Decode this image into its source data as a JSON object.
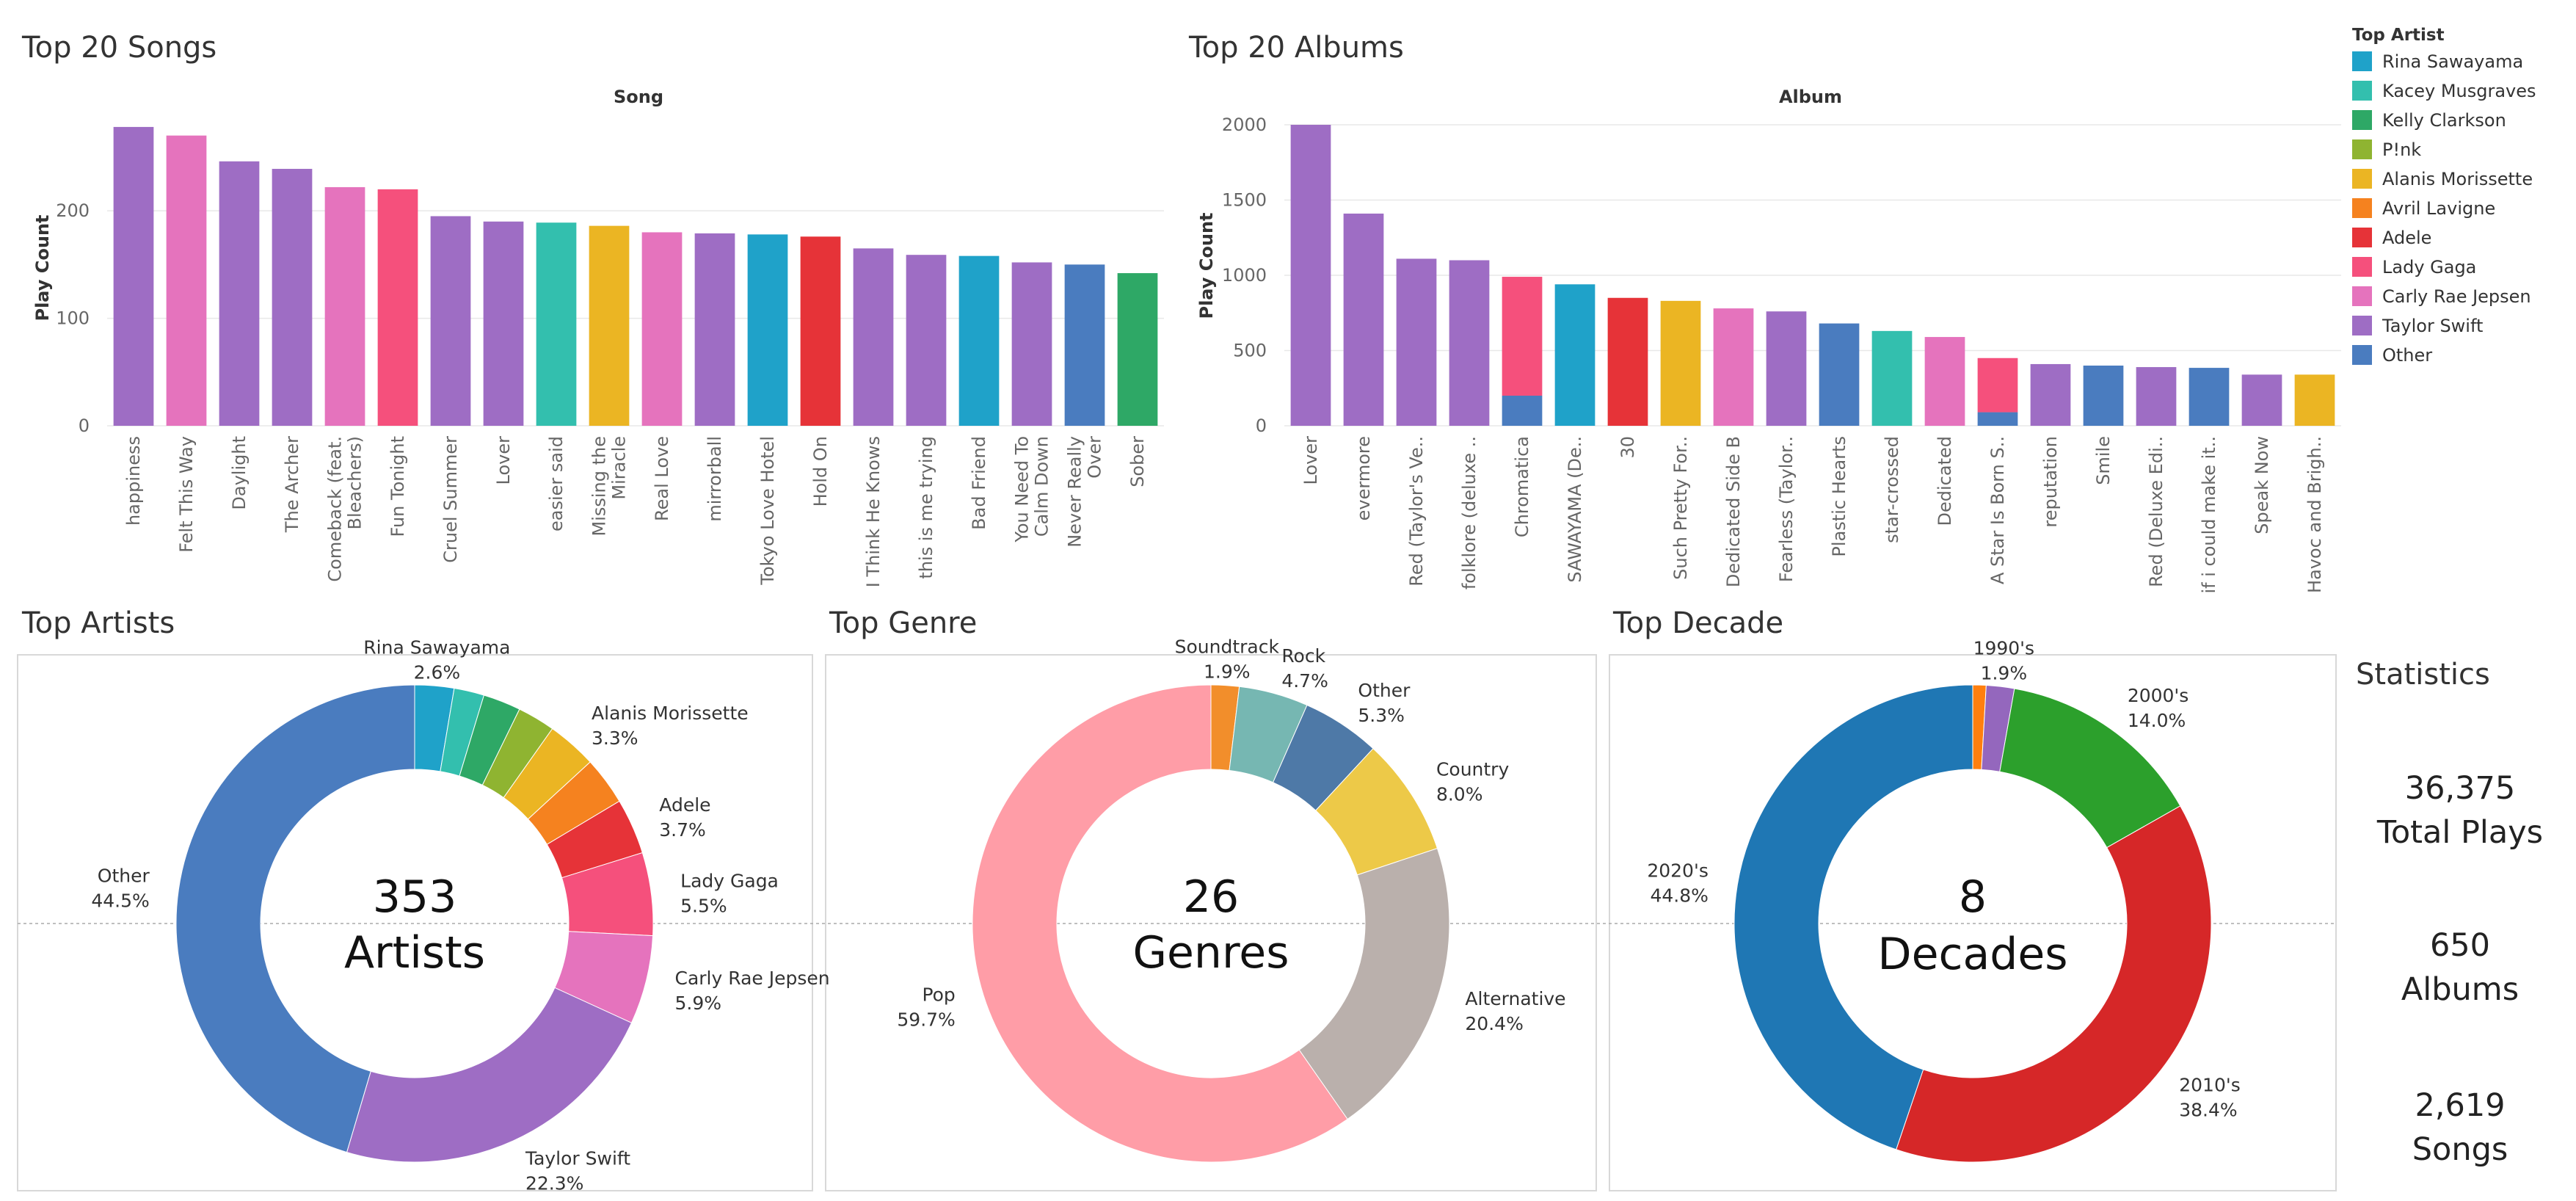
{
  "colors": {
    "Rina Sawayama": "#1fa2c9",
    "Kacey Musgraves": "#33bfae",
    "Kelly Clarkson": "#2ea866",
    "P!nk": "#8fb431",
    "Alanis Morissette": "#ebb523",
    "Avril Lavigne": "#f5821f",
    "Adele": "#e63338",
    "Lady Gaga": "#f5507c",
    "Carly Rae Jepsen": "#e573bd",
    "Taylor Swift": "#9e6dc4",
    "Other": "#4a7cbf"
  },
  "chart_data": [
    {
      "type": "bar",
      "title": "Top 20 Songs",
      "xlabel": "Song",
      "ylabel": "Play Count",
      "ylim": [
        0,
        280
      ],
      "yticks": [
        0,
        100,
        200
      ],
      "categories": [
        "happiness",
        "Felt This Way",
        "Daylight",
        "The Archer",
        "Comeback (feat. Bleachers)",
        "Fun Tonight",
        "Cruel Summer",
        "Lover",
        "easier said",
        "Missing the Miracle",
        "Real Love",
        "mirrorball",
        "Tokyo Love Hotel",
        "Hold On",
        "I Think He Knows",
        "this is me trying",
        "Bad Friend",
        "You Need To Calm Down",
        "Never Really Over",
        "Sober"
      ],
      "tick_labels": [
        [
          "happiness"
        ],
        [
          "Felt This Way"
        ],
        [
          "Daylight"
        ],
        [
          "The Archer"
        ],
        [
          "Comeback (feat.",
          "Bleachers)"
        ],
        [
          "Fun Tonight"
        ],
        [
          "Cruel Summer"
        ],
        [
          "Lover"
        ],
        [
          "easier said"
        ],
        [
          "Missing the",
          "Miracle"
        ],
        [
          "Real Love"
        ],
        [
          "mirrorball"
        ],
        [
          "Tokyo Love Hotel"
        ],
        [
          "Hold On"
        ],
        [
          "I Think He Knows"
        ],
        [
          "this is me trying"
        ],
        [
          "Bad Friend"
        ],
        [
          "You Need To",
          "Calm Down"
        ],
        [
          "Never Really",
          "Over"
        ],
        [
          "Sober"
        ]
      ],
      "values": [
        278,
        270,
        246,
        239,
        222,
        220,
        195,
        190,
        189,
        186,
        180,
        179,
        178,
        176,
        165,
        159,
        158,
        152,
        150,
        142
      ],
      "artists": [
        "Taylor Swift",
        "Carly Rae Jepsen",
        "Taylor Swift",
        "Taylor Swift",
        "Carly Rae Jepsen",
        "Lady Gaga",
        "Taylor Swift",
        "Taylor Swift",
        "Kacey Musgraves",
        "Alanis Morissette",
        "Carly Rae Jepsen",
        "Taylor Swift",
        "Rina Sawayama",
        "Adele",
        "Taylor Swift",
        "Taylor Swift",
        "Rina Sawayama",
        "Taylor Swift",
        "Other",
        "Kelly Clarkson"
      ]
    },
    {
      "type": "bar",
      "title": "Top 20 Albums",
      "xlabel": "Album",
      "ylabel": "Play Count",
      "ylim": [
        0,
        2000
      ],
      "yticks": [
        0,
        500,
        1000,
        1500,
        2000
      ],
      "categories": [
        "Lover",
        "evermore",
        "Red (Taylor's Ve..",
        "folklore (deluxe ..",
        "Chromatica",
        "SAWAYAMA (De..",
        "30",
        "Such Pretty For..",
        "Dedicated Side B",
        "Fearless (Taylor..",
        "Plastic Hearts",
        "star-crossed",
        "Dedicated",
        "A Star Is Born S..",
        "reputation",
        "Smile",
        "Red (Deluxe Edi..",
        "if i could make it..",
        "Speak Now",
        "Havoc and Brigh.."
      ],
      "values": [
        2000,
        1410,
        1110,
        1100,
        990,
        940,
        850,
        830,
        780,
        760,
        680,
        630,
        590,
        450,
        410,
        400,
        390,
        385,
        340,
        340
      ],
      "stacks": [
        [
          {
            "artist": "Taylor Swift",
            "value": 2000
          }
        ],
        [
          {
            "artist": "Taylor Swift",
            "value": 1410
          }
        ],
        [
          {
            "artist": "Taylor Swift",
            "value": 1110
          }
        ],
        [
          {
            "artist": "Taylor Swift",
            "value": 1100
          }
        ],
        [
          {
            "artist": "Other",
            "value": 200
          },
          {
            "artist": "Lady Gaga",
            "value": 790
          }
        ],
        [
          {
            "artist": "Rina Sawayama",
            "value": 940
          }
        ],
        [
          {
            "artist": "Adele",
            "value": 850
          }
        ],
        [
          {
            "artist": "Alanis Morissette",
            "value": 830
          }
        ],
        [
          {
            "artist": "Carly Rae Jepsen",
            "value": 780
          }
        ],
        [
          {
            "artist": "Taylor Swift",
            "value": 760
          }
        ],
        [
          {
            "artist": "Other",
            "value": 680
          }
        ],
        [
          {
            "artist": "Kacey Musgraves",
            "value": 630
          }
        ],
        [
          {
            "artist": "Carly Rae Jepsen",
            "value": 590
          }
        ],
        [
          {
            "artist": "Other",
            "value": 90
          },
          {
            "artist": "Lady Gaga",
            "value": 360
          }
        ],
        [
          {
            "artist": "Taylor Swift",
            "value": 410
          }
        ],
        [
          {
            "artist": "Other",
            "value": 400
          }
        ],
        [
          {
            "artist": "Taylor Swift",
            "value": 390
          }
        ],
        [
          {
            "artist": "Other",
            "value": 385
          }
        ],
        [
          {
            "artist": "Taylor Swift",
            "value": 340
          }
        ],
        [
          {
            "artist": "Alanis Morissette",
            "value": 340
          }
        ]
      ]
    },
    {
      "type": "pie",
      "title": "Top Artists",
      "center_number": "353",
      "center_label": "Artists",
      "slices": [
        {
          "name": "Rina Sawayama",
          "value": 2.6,
          "color": "#1fa2c9",
          "label": "Rina Sawayama",
          "pct": "2.6%"
        },
        {
          "name": "Kacey Musgraves",
          "value": 2.0,
          "color": "#33bfae",
          "label": "",
          "pct": ""
        },
        {
          "name": "Kelly Clarkson",
          "value": 2.5,
          "color": "#2ea866",
          "label": "",
          "pct": ""
        },
        {
          "name": "P!nk",
          "value": 2.5,
          "color": "#8fb431",
          "label": "",
          "pct": ""
        },
        {
          "name": "Alanis Morissette",
          "value": 3.3,
          "color": "#ebb523",
          "label": "Alanis Morissette",
          "pct": "3.3%"
        },
        {
          "name": "Avril Lavigne",
          "value": 3.2,
          "color": "#f5821f",
          "label": "",
          "pct": ""
        },
        {
          "name": "Adele",
          "value": 3.7,
          "color": "#e63338",
          "label": "Adele",
          "pct": "3.7%"
        },
        {
          "name": "Lady Gaga",
          "value": 5.5,
          "color": "#f5507c",
          "label": "Lady Gaga",
          "pct": "5.5%"
        },
        {
          "name": "Carly Rae Jepsen",
          "value": 5.9,
          "color": "#e573bd",
          "label": "Carly Rae Jepsen",
          "pct": "5.9%"
        },
        {
          "name": "Taylor Swift",
          "value": 22.3,
          "color": "#9e6dc4",
          "label": "Taylor Swift",
          "pct": "22.3%"
        },
        {
          "name": "Other",
          "value": 44.5,
          "color": "#4a7cbf",
          "label": "Other",
          "pct": "44.5%"
        }
      ]
    },
    {
      "type": "pie",
      "title": "Top Genre",
      "center_number": "26",
      "center_label": "Genres",
      "slices": [
        {
          "name": "Soundtrack",
          "value": 1.9,
          "color": "#f28e2b",
          "label": "Soundtrack",
          "pct": "1.9%"
        },
        {
          "name": "Rock",
          "value": 4.7,
          "color": "#76b7b2",
          "label": "Rock",
          "pct": "4.7%"
        },
        {
          "name": "Other",
          "value": 5.3,
          "color": "#4e79a7",
          "label": "Other",
          "pct": "5.3%"
        },
        {
          "name": "Country",
          "value": 8.0,
          "color": "#edc948",
          "label": "Country",
          "pct": "8.0%"
        },
        {
          "name": "Alternative",
          "value": 20.4,
          "color": "#bab0ac",
          "label": "Alternative",
          "pct": "20.4%"
        },
        {
          "name": "Pop",
          "value": 59.7,
          "color": "#ff9da7",
          "label": "Pop",
          "pct": "59.7%"
        }
      ]
    },
    {
      "type": "pie",
      "title": "Top Decade",
      "center_number": "8",
      "center_label": "Decades",
      "slices": [
        {
          "name": "small-1",
          "value": 0.9,
          "color": "#ff7f0e",
          "label": "",
          "pct": ""
        },
        {
          "name": "1990's",
          "value": 1.9,
          "color": "#9467bd",
          "label": "1990's",
          "pct": "1.9%"
        },
        {
          "name": "2000's",
          "value": 14.0,
          "color": "#2ca02c",
          "label": "2000's",
          "pct": "14.0%"
        },
        {
          "name": "2010's",
          "value": 38.4,
          "color": "#d62728",
          "label": "2010's",
          "pct": "38.4%"
        },
        {
          "name": "2020's",
          "value": 44.8,
          "color": "#1f77b4",
          "label": "2020's",
          "pct": "44.8%"
        }
      ]
    }
  ],
  "legend": {
    "title": "Top Artist",
    "items": [
      "Rina Sawayama",
      "Kacey Musgraves",
      "Kelly Clarkson",
      "P!nk",
      "Alanis Morissette",
      "Avril Lavigne",
      "Adele",
      "Lady Gaga",
      "Carly Rae Jepsen",
      "Taylor Swift",
      "Other"
    ]
  },
  "statistics": {
    "title": "Statistics",
    "items": [
      {
        "number": "36,375",
        "label": "Total Plays"
      },
      {
        "number": "650",
        "label": "Albums"
      },
      {
        "number": "2,619",
        "label": "Songs"
      }
    ]
  }
}
